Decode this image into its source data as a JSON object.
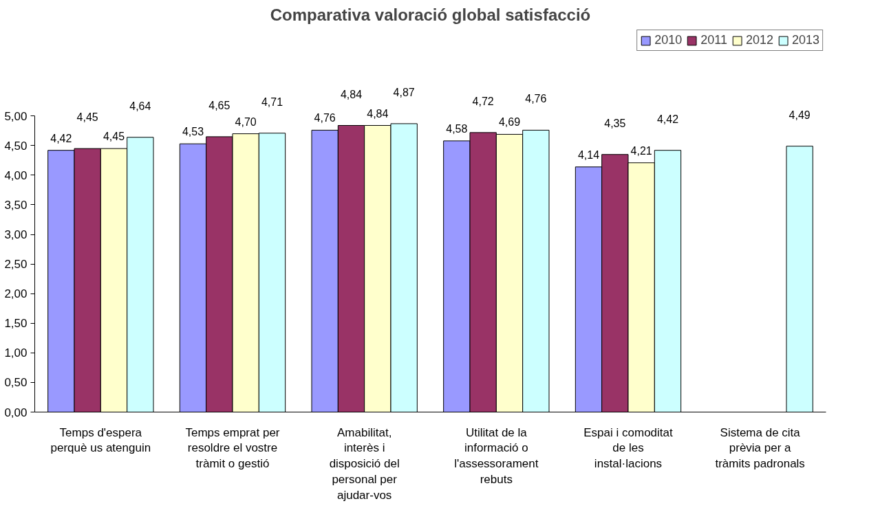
{
  "chart_data": {
    "type": "bar",
    "title": "Comparativa valoració global satisfacció",
    "categories": [
      "Temps d'espera perquè us atenguin",
      "Temps emprat per resoldre el vostre tràmit o gestió",
      "Amabilitat, interès i disposició del personal per ajudar-vos",
      "Utilitat de la informació o l'assessorament rebuts",
      "Espai i comoditat de les instal·lacions",
      "Sistema de cita prèvia per a tràmits padronals"
    ],
    "series": [
      {
        "name": "2010",
        "color": "#9999ff",
        "values": [
          4.42,
          4.53,
          4.76,
          4.58,
          4.14,
          null
        ],
        "value_labels": [
          "4,42",
          "4,53",
          "4,76",
          "4,58",
          "4,14",
          null
        ]
      },
      {
        "name": "2011",
        "color": "#993366",
        "values": [
          4.45,
          4.65,
          4.84,
          4.72,
          4.35,
          null
        ],
        "value_labels": [
          "4,45",
          "4,65",
          "4,84",
          "4,72",
          "4,35",
          null
        ]
      },
      {
        "name": "2012",
        "color": "#ffffcc",
        "values": [
          4.45,
          4.7,
          4.84,
          4.69,
          4.21,
          null
        ],
        "value_labels": [
          "4,45",
          "4,70",
          "4,84",
          "4,69",
          "4,21",
          null
        ]
      },
      {
        "name": "2013",
        "color": "#ccffff",
        "values": [
          4.64,
          4.71,
          4.87,
          4.76,
          4.42,
          4.49
        ],
        "value_labels": [
          "4,64",
          "4,71",
          "4,87",
          "4,76",
          "4,42",
          "4,49"
        ]
      }
    ],
    "ylim": [
      0,
      5
    ],
    "yticks": [
      {
        "value": 0,
        "label": "0,00"
      },
      {
        "value": 0.5,
        "label": "0,50"
      },
      {
        "value": 1,
        "label": "1,00"
      },
      {
        "value": 1.5,
        "label": "1,50"
      },
      {
        "value": 2,
        "label": "2,00"
      },
      {
        "value": 2.5,
        "label": "2,50"
      },
      {
        "value": 3,
        "label": "3,00"
      },
      {
        "value": 3.5,
        "label": "3,50"
      },
      {
        "value": 4,
        "label": "4,00"
      },
      {
        "value": 4.5,
        "label": "4,50"
      },
      {
        "value": 5,
        "label": "5,00"
      }
    ],
    "grid": false,
    "legend": "top right"
  }
}
